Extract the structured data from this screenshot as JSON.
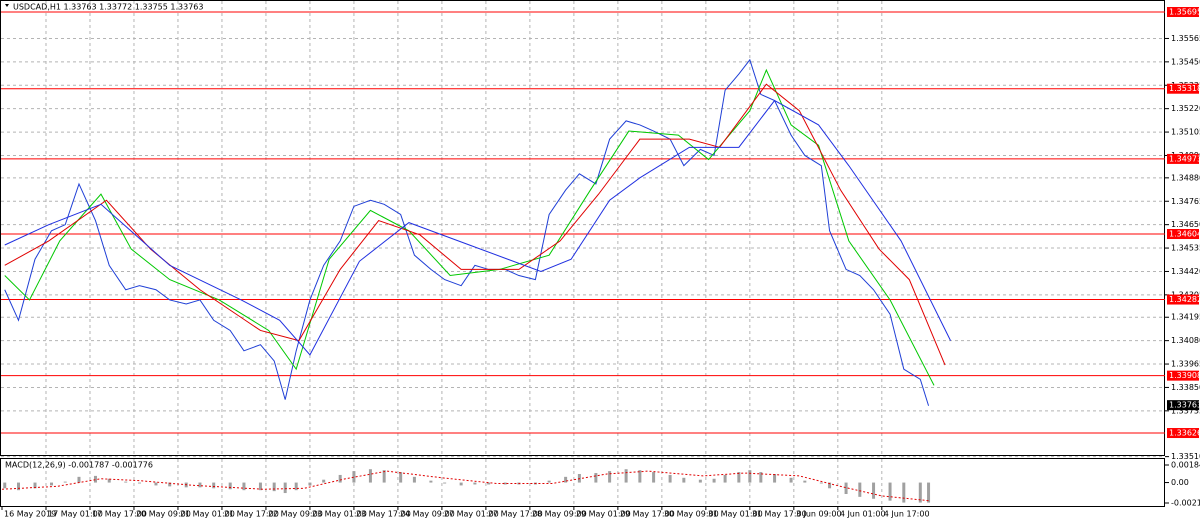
{
  "chart_data": {
    "type": "line",
    "header": "USDCAD,H1  1.33763 1.33772 1.33755 1.33763",
    "xlim": [
      0,
      423
    ],
    "ylim": [
      1.33518,
      1.35754
    ],
    "xticks": [
      {
        "value": 0,
        "label": "16 May 2019"
      },
      {
        "value": 16,
        "label": "17 May 01:00"
      },
      {
        "value": 32,
        "label": "17 May 17:00"
      },
      {
        "value": 48,
        "label": "20 May 09:00"
      },
      {
        "value": 64,
        "label": "21 May 01:00"
      },
      {
        "value": 80,
        "label": "21 May 17:00"
      },
      {
        "value": 96,
        "label": "22 May 09:00"
      },
      {
        "value": 112,
        "label": "23 May 01:00"
      },
      {
        "value": 128,
        "label": "23 May 17:00"
      },
      {
        "value": 144,
        "label": "24 May 09:00"
      },
      {
        "value": 160,
        "label": "27 May 01:00"
      },
      {
        "value": 176,
        "label": "27 May 17:00"
      },
      {
        "value": 192,
        "label": "28 May 09:00"
      },
      {
        "value": 208,
        "label": "29 May 01:00"
      },
      {
        "value": 224,
        "label": "29 May 17:00"
      },
      {
        "value": 240,
        "label": "30 May 09:00"
      },
      {
        "value": 256,
        "label": "31 May 01:00"
      },
      {
        "value": 272,
        "label": "31 May 17:00"
      },
      {
        "value": 288,
        "label": "3 Jun 09:00"
      },
      {
        "value": 304,
        "label": "4 Jun 01:00"
      },
      {
        "value": 320,
        "label": "4 Jun 17:00"
      }
    ],
    "yticks": [
      1.35565,
      {
        "value": 1.3545,
        "label": "1.35450"
      },
      1.35335,
      {
        "value": 1.3522,
        "label": "1.35220"
      },
      1.35105,
      {
        "value": 1.3499,
        "label": "1.34990"
      },
      {
        "value": 1.3488,
        "label": "1.34880"
      },
      1.34765,
      {
        "value": 1.3465,
        "label": "1.34650"
      },
      1.34535,
      {
        "value": 1.3442,
        "label": "1.34420"
      },
      1.34305,
      1.34195,
      {
        "value": 1.3408,
        "label": "1.34080"
      },
      1.33965,
      {
        "value": 1.3385,
        "label": "1.33850"
      },
      1.33735,
      {
        "value": 1.3351,
        "label": "1.33510"
      }
    ],
    "grid": true,
    "levels": {
      "color": "#ff0000",
      "values": [
        1.35695,
        1.35318,
        1.34973,
        1.34604,
        1.34282,
        1.33908,
        1.33626
      ]
    },
    "current_price": 1.33763,
    "series": [
      {
        "name": "USDCAD",
        "color": "#1f3fd6",
        "x": [
          1,
          6,
          12,
          18,
          23,
          28,
          34,
          39,
          45,
          50,
          56,
          61,
          67,
          72,
          77,
          83,
          88,
          94,
          99,
          103,
          107,
          112,
          117,
          123,
          128,
          134,
          139,
          145,
          150,
          156,
          161,
          167,
          172,
          177,
          183,
          188,
          194,
          199,
          205,
          210,
          216,
          221,
          227,
          232,
          237,
          243,
          248,
          254,
          259,
          263,
          268,
          272,
          276,
          281,
          287,
          292,
          298,
          301,
          307,
          312,
          317,
          323,
          328,
          334,
          337
        ],
        "values": [
          1.3433,
          1.3418,
          1.3448,
          1.3462,
          1.3465,
          1.3485,
          1.3467,
          1.3445,
          1.3433,
          1.3435,
          1.3433,
          1.3428,
          1.3426,
          1.3428,
          1.3418,
          1.3413,
          1.3403,
          1.3406,
          1.3398,
          1.3379,
          1.3403,
          1.3428,
          1.3445,
          1.3457,
          1.3474,
          1.3477,
          1.3475,
          1.347,
          1.345,
          1.3443,
          1.3438,
          1.3435,
          1.3445,
          1.3443,
          1.3443,
          1.344,
          1.3438,
          1.347,
          1.3482,
          1.349,
          1.3485,
          1.3507,
          1.3516,
          1.3514,
          1.3511,
          1.3507,
          1.3494,
          1.3502,
          1.3499,
          1.3531,
          1.3539,
          1.3546,
          1.3529,
          1.3526,
          1.3509,
          1.3499,
          1.3494,
          1.3462,
          1.3443,
          1.344,
          1.3433,
          1.3421,
          1.3394,
          1.3389,
          1.3376
        ]
      },
      {
        "name": "MA fast",
        "color": "#00c800",
        "x": [
          1,
          10,
          21,
          36,
          47,
          61,
          79,
          97,
          107,
          119,
          134,
          148,
          163,
          181,
          199,
          214,
          228,
          246,
          257,
          272,
          278,
          287,
          297,
          308,
          323,
          339
        ],
        "values": [
          1.344,
          1.3428,
          1.3457,
          1.348,
          1.3453,
          1.3438,
          1.3428,
          1.3413,
          1.3394,
          1.3448,
          1.3472,
          1.3462,
          1.344,
          1.3443,
          1.345,
          1.3482,
          1.3511,
          1.3509,
          1.3497,
          1.3521,
          1.3541,
          1.3514,
          1.3504,
          1.3457,
          1.3428,
          1.3386
        ]
      },
      {
        "name": "MA medium",
        "color": "#e00000",
        "x": [
          1,
          17,
          38,
          54,
          72,
          94,
          108,
          123,
          137,
          152,
          167,
          188,
          203,
          217,
          232,
          250,
          261,
          278,
          290,
          305,
          319,
          330,
          343
        ],
        "values": [
          1.3445,
          1.3457,
          1.3477,
          1.3453,
          1.3433,
          1.3413,
          1.3408,
          1.3443,
          1.3467,
          1.346,
          1.3443,
          1.3443,
          1.3457,
          1.348,
          1.3507,
          1.3507,
          1.3503,
          1.3534,
          1.3521,
          1.3482,
          1.3453,
          1.3438,
          1.3396
        ]
      },
      {
        "name": "MA slow",
        "color": "#2030e0",
        "x": [
          1,
          17,
          36,
          61,
          87,
          101,
          112,
          130,
          148,
          170,
          196,
          207,
          221,
          232,
          250,
          268,
          281,
          297,
          308,
          327,
          345
        ],
        "values": [
          1.3455,
          1.3465,
          1.3475,
          1.3445,
          1.3428,
          1.3418,
          1.3401,
          1.3447,
          1.3466,
          1.3455,
          1.3442,
          1.3448,
          1.3477,
          1.3488,
          1.3503,
          1.3503,
          1.3526,
          1.3514,
          1.3494,
          1.3457,
          1.3408
        ]
      }
    ],
    "macd": {
      "title": "MACD(12,26,9) -0.001787 -0.001776",
      "ylim": [
        -0.00246,
        0.002578
      ],
      "yticks": [
        0.001843,
        {
          "value": 0,
          "label": "0.00"
        },
        -0.002145
      ],
      "histogram": {
        "color": "#a0a0a0",
        "x": [
          1,
          6,
          12,
          18,
          23,
          28,
          34,
          39,
          45,
          50,
          56,
          61,
          67,
          72,
          77,
          83,
          88,
          94,
          99,
          103,
          107,
          112,
          117,
          123,
          128,
          134,
          139,
          145,
          150,
          156,
          161,
          167,
          172,
          177,
          183,
          188,
          194,
          199,
          205,
          210,
          216,
          221,
          227,
          232,
          237,
          243,
          248,
          254,
          259,
          263,
          268,
          272,
          276,
          281,
          287,
          292,
          298,
          301,
          307,
          312,
          317,
          323,
          328,
          334,
          337
        ],
        "values": [
          -0.0006,
          -0.0008,
          -0.0006,
          -0.0003,
          0.0001,
          0.0006,
          0.0007,
          0.0004,
          0.0001,
          -0.0001,
          -0.0003,
          -0.0004,
          -0.0005,
          -0.0005,
          -0.0006,
          -0.0007,
          -0.0008,
          -0.0008,
          -0.0009,
          -0.0011,
          -0.0008,
          -0.0003,
          0.0003,
          0.0008,
          0.0012,
          0.0014,
          0.0013,
          0.0011,
          0.0006,
          0.0002,
          -0.0001,
          -0.0003,
          -0.0002,
          -0.0002,
          -0.0002,
          -0.0002,
          -0.0002,
          0.0002,
          0.0006,
          0.0009,
          0.001,
          0.0012,
          0.0014,
          0.0013,
          0.0011,
          0.0008,
          0.0005,
          0.0003,
          0.0004,
          0.0008,
          0.0011,
          0.0013,
          0.0011,
          0.0009,
          0.0005,
          0.0002,
          -0.0001,
          -0.0006,
          -0.0012,
          -0.0015,
          -0.0017,
          -0.0019,
          -0.0021,
          -0.0021,
          -0.0021
        ]
      },
      "signal": {
        "color": "#e00000",
        "x": [
          0,
          20,
          36,
          50,
          70,
          95,
          110,
          125,
          140,
          160,
          180,
          200,
          220,
          235,
          255,
          270,
          290,
          305,
          320,
          337
        ],
        "values": [
          -0.0007,
          -0.0004,
          0.0004,
          0.0002,
          -0.0003,
          -0.0007,
          -0.0006,
          0.0004,
          0.0012,
          0.0005,
          -0.0001,
          -0.0001,
          0.0009,
          0.0012,
          0.0007,
          0.001,
          0.0007,
          -0.0004,
          -0.0014,
          -0.0019
        ]
      }
    }
  }
}
